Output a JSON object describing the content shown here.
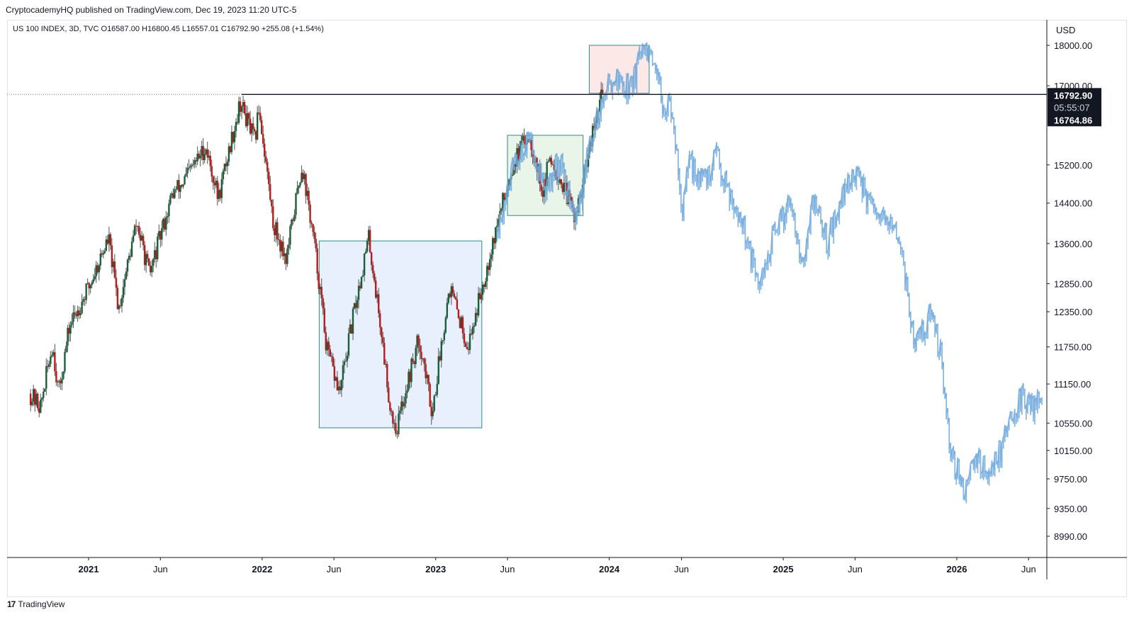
{
  "header": {
    "published": "CryptocademyHQ published on TradingView.com, Dec 19, 2023 11:20 UTC-5"
  },
  "legend": {
    "text": "US 100 INDEX, 3D, TVC  O16587.00  H16800.45  L16557.01  C16792.90  +255.08 (+1.54%)"
  },
  "footer": {
    "logo_glyph": "17",
    "brand": "TradingView"
  },
  "colors": {
    "up": "#1b5e3a",
    "down": "#b71c1c",
    "projection": "#6fa8dc",
    "box_blue": "#e8f0fd",
    "box_green": "#eaf5ea",
    "box_red": "#fde8e8",
    "box_border": "#2a8c8c",
    "price_line": "#131722"
  },
  "chart_data": {
    "type": "candlestick",
    "currency": "USD",
    "y_axis_ticks": [
      18000,
      17000,
      15200,
      14400,
      13600,
      12850,
      12350,
      11750,
      11150,
      10550,
      10150,
      9750,
      9350,
      8990
    ],
    "y_axis_labels": [
      "18000.00",
      "17000.00",
      "15200.00",
      "14400.00",
      "13600.00",
      "12850.00",
      "12350.00",
      "11750.00",
      "11150.00",
      "10550.00",
      "10150.00",
      "9750.00",
      "9350.00",
      "8990.00"
    ],
    "y_scale": "log",
    "x_axis_labels": [
      {
        "label": "2021",
        "date": "2021-01-01",
        "bold": true
      },
      {
        "label": "Jun",
        "date": "2021-06-01",
        "bold": false
      },
      {
        "label": "2022",
        "date": "2022-01-01",
        "bold": true
      },
      {
        "label": "Jun",
        "date": "2022-06-01",
        "bold": false
      },
      {
        "label": "2023",
        "date": "2023-01-01",
        "bold": true
      },
      {
        "label": "Jun",
        "date": "2023-06-01",
        "bold": false
      },
      {
        "label": "2024",
        "date": "2024-01-01",
        "bold": true
      },
      {
        "label": "Jun",
        "date": "2024-06-01",
        "bold": false
      },
      {
        "label": "2025",
        "date": "2025-01-01",
        "bold": true
      },
      {
        "label": "Jun",
        "date": "2025-06-01",
        "bold": false
      },
      {
        "label": "2026",
        "date": "2026-01-01",
        "bold": true
      },
      {
        "label": "Jun",
        "date": "2026-06-01",
        "bold": false
      }
    ],
    "current_price": {
      "value": 16792.9,
      "label": "16792.90",
      "countdown": "05:55:07",
      "second_label": "16764.86",
      "second_value": 16764.86
    },
    "horizontal_line": {
      "value": 16792.9,
      "start_date": "2021-11-19"
    },
    "candles_path": [
      {
        "date": "2020-09-01",
        "price": 11000
      },
      {
        "date": "2020-09-25",
        "price": 10800
      },
      {
        "date": "2020-10-20",
        "price": 11800
      },
      {
        "date": "2020-11-02",
        "price": 11000
      },
      {
        "date": "2020-11-25",
        "price": 12100
      },
      {
        "date": "2021-01-05",
        "price": 12800
      },
      {
        "date": "2021-02-15",
        "price": 13700
      },
      {
        "date": "2021-03-08",
        "price": 12400
      },
      {
        "date": "2021-04-15",
        "price": 14000
      },
      {
        "date": "2021-05-12",
        "price": 13000
      },
      {
        "date": "2021-06-30",
        "price": 14600
      },
      {
        "date": "2021-07-20",
        "price": 14800
      },
      {
        "date": "2021-09-07",
        "price": 15600
      },
      {
        "date": "2021-10-04",
        "price": 14500
      },
      {
        "date": "2021-11-19",
        "price": 16600
      },
      {
        "date": "2021-12-20",
        "price": 15700
      },
      {
        "date": "2021-12-28",
        "price": 16500
      },
      {
        "date": "2022-01-27",
        "price": 14000
      },
      {
        "date": "2022-02-24",
        "price": 13300
      },
      {
        "date": "2022-03-29",
        "price": 15200
      },
      {
        "date": "2022-04-25",
        "price": 13500
      },
      {
        "date": "2022-05-20",
        "price": 11700
      },
      {
        "date": "2022-06-16",
        "price": 11000
      },
      {
        "date": "2022-08-16",
        "price": 13700
      },
      {
        "date": "2022-09-30",
        "price": 10800
      },
      {
        "date": "2022-10-13",
        "price": 10450
      },
      {
        "date": "2022-11-30",
        "price": 11900
      },
      {
        "date": "2022-12-28",
        "price": 10700
      },
      {
        "date": "2023-02-02",
        "price": 12800
      },
      {
        "date": "2023-03-13",
        "price": 11750
      },
      {
        "date": "2023-04-20",
        "price": 13100
      },
      {
        "date": "2023-06-15",
        "price": 15200
      },
      {
        "date": "2023-07-19",
        "price": 15900
      },
      {
        "date": "2023-08-18",
        "price": 14600
      },
      {
        "date": "2023-09-01",
        "price": 15400
      },
      {
        "date": "2023-10-26",
        "price": 14100
      },
      {
        "date": "2023-12-19",
        "price": 16792.9
      }
    ],
    "projection_path": [
      {
        "date": "2023-05-10",
        "price": 13700
      },
      {
        "date": "2023-06-15",
        "price": 15100
      },
      {
        "date": "2023-07-19",
        "price": 15800
      },
      {
        "date": "2023-08-25",
        "price": 14600
      },
      {
        "date": "2023-09-20",
        "price": 15300
      },
      {
        "date": "2023-10-25",
        "price": 14000
      },
      {
        "date": "2023-12-01",
        "price": 15900
      },
      {
        "date": "2024-01-10",
        "price": 17200
      },
      {
        "date": "2024-02-15",
        "price": 16900
      },
      {
        "date": "2024-03-20",
        "price": 17900
      },
      {
        "date": "2024-04-10",
        "price": 17200
      },
      {
        "date": "2024-04-25",
        "price": 16600
      },
      {
        "date": "2024-05-10",
        "price": 16400
      },
      {
        "date": "2024-05-25",
        "price": 15600
      },
      {
        "date": "2024-06-05",
        "price": 14100
      },
      {
        "date": "2024-06-20",
        "price": 15200
      },
      {
        "date": "2024-07-25",
        "price": 14800
      },
      {
        "date": "2024-08-15",
        "price": 15400
      },
      {
        "date": "2024-09-10",
        "price": 14700
      },
      {
        "date": "2024-10-10",
        "price": 14000
      },
      {
        "date": "2024-11-05",
        "price": 13000
      },
      {
        "date": "2024-11-15",
        "price": 12700
      },
      {
        "date": "2024-12-10",
        "price": 13600
      },
      {
        "date": "2025-01-20",
        "price": 14500
      },
      {
        "date": "2025-02-15",
        "price": 13100
      },
      {
        "date": "2025-03-10",
        "price": 14500
      },
      {
        "date": "2025-04-05",
        "price": 13600
      },
      {
        "date": "2025-05-01",
        "price": 14300
      },
      {
        "date": "2025-05-28",
        "price": 15000
      },
      {
        "date": "2025-06-20",
        "price": 14700
      },
      {
        "date": "2025-07-15",
        "price": 14100
      },
      {
        "date": "2025-08-20",
        "price": 13900
      },
      {
        "date": "2025-09-10",
        "price": 13500
      },
      {
        "date": "2025-09-20",
        "price": 12800
      },
      {
        "date": "2025-10-05",
        "price": 11800
      },
      {
        "date": "2025-10-20",
        "price": 11900
      },
      {
        "date": "2025-11-10",
        "price": 12300
      },
      {
        "date": "2025-12-01",
        "price": 11600
      },
      {
        "date": "2025-12-12",
        "price": 10600
      },
      {
        "date": "2025-12-25",
        "price": 10000
      },
      {
        "date": "2026-01-20",
        "price": 9600
      },
      {
        "date": "2026-02-10",
        "price": 10100
      },
      {
        "date": "2026-03-10",
        "price": 9800
      },
      {
        "date": "2026-04-10",
        "price": 10200
      },
      {
        "date": "2026-05-01",
        "price": 10700
      },
      {
        "date": "2026-05-20",
        "price": 10900
      },
      {
        "date": "2026-06-15",
        "price": 10800
      },
      {
        "date": "2026-06-30",
        "price": 11000
      }
    ],
    "boxes": [
      {
        "name": "accumulation-box",
        "start": "2022-05-01",
        "end": "2023-04-08",
        "top": 13650,
        "bottom": 10480,
        "fill": "box_blue"
      },
      {
        "name": "consolidation-box",
        "start": "2023-06-01",
        "end": "2023-11-07",
        "top": 15850,
        "bottom": 14150,
        "fill": "box_green"
      },
      {
        "name": "distribution-box",
        "start": "2023-11-20",
        "end": "2024-03-25",
        "top": 18000,
        "bottom": 16820,
        "fill": "box_red"
      }
    ]
  }
}
